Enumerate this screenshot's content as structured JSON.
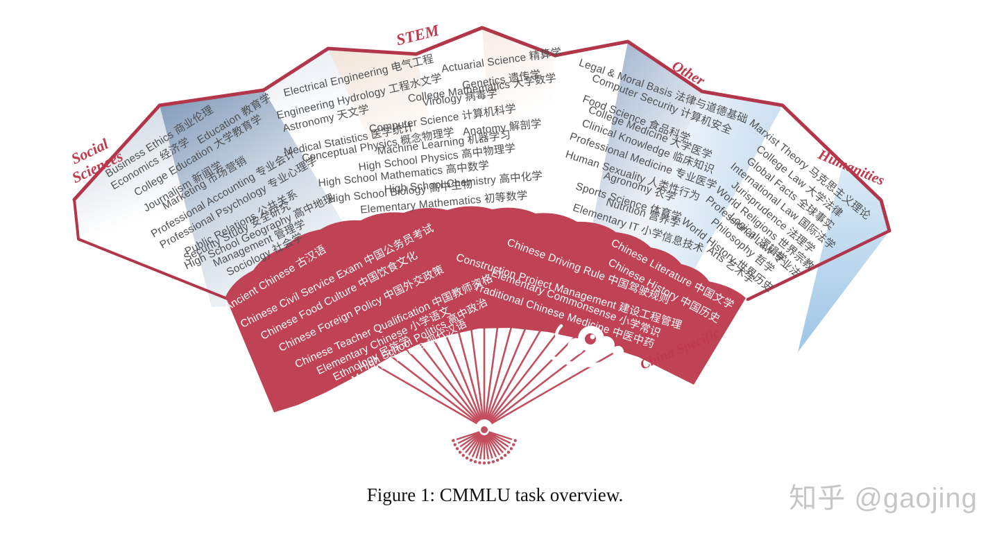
{
  "figure": {
    "caption": "Figure 1: CMMLU task overview."
  },
  "watermark": "知乎 @gaojing",
  "colors": {
    "fan_red": "#bf4355",
    "trim_red": "#b23649",
    "rib_red": "#c24e5e",
    "label_red": "#bf3a4e",
    "task_text_gray": "#4f5052",
    "band_text_white": "#ffffff",
    "blue_gray": "#8ba1bf",
    "light_blue": "#a5cbe9",
    "cream": "#f2e4d8",
    "watermark_gray": "#c6c6c6"
  },
  "categories": [
    {
      "id": "social-sciences",
      "label": "Social\nSciences",
      "items": [
        "Business Ethics 商业伦理",
        "Education 教育学",
        "Economics 经济学",
        "College Education 大学教育学",
        "Journalism 新闻学",
        "Marketing 市场营销",
        "Professional Accounting 专业会计",
        "Professional Psychology 专业心理学",
        "Public Relations 公共关系",
        "Security Study 安全研究",
        "High School Geography 高中地理",
        "Management 管理学",
        "Sociology 社会学"
      ]
    },
    {
      "id": "stem",
      "label": "STEM",
      "items": [
        "Electrical Engineering 电气工程",
        "Actuarial Science 精算学",
        "Engineering Hydrology 工程水文学",
        "Genetics 遗传学",
        "College Mathematics 大学数学",
        "Astronomy 天文学",
        "Virology 病毒学",
        "Medical Statistics 医学统计",
        "Computer Science 计算机科学",
        "Conceptual Physics 概念物理学",
        "Anatomy 解剖学",
        "Machine Learning 机器学习",
        "High School Physics 高中物理学",
        "High School Mathematics 高中数学",
        "High School Chemistry 高中化学",
        "High School Biology 高中生物",
        "Elementary Mathematics 初等数学"
      ]
    },
    {
      "id": "other",
      "label": "Other",
      "items": [
        "Legal & Moral Basis 法律与道德基础",
        "Computer Security 计算机安全",
        "Food Science 食品科学",
        "College Medicine 大学医学",
        "Clinical Knowledge 临床知识",
        "Professional Medicine 专业医学",
        "Human Sexuality 人类性行为",
        "Agronomy 农学",
        "Sports Science 体育学",
        "Nutrition 营养学",
        "Elementary IT 小学信息技术"
      ]
    },
    {
      "id": "humanities",
      "label": "Humanities",
      "items": [
        "Marxist Theory 马克思主义理论",
        "College Law 大学法律",
        "Global Facts 全球事实",
        "International Law 国际法学",
        "Jurisprudence 法理学",
        "World Religions 世界宗教",
        "Logical 逻辑学",
        "Professional Law 专业法",
        "Philosophy 哲学",
        "World History 世界历史",
        "Arts 艺术学"
      ]
    },
    {
      "id": "china-specific",
      "label": "China Specific",
      "items": [
        "Ancient Chinese 古汉语",
        "Chinese Civil Service Exam 中国公务员考试",
        "Chinese Food Culture 中国饮食文化",
        "Chinese Foreign Policy 中国外交政策",
        "Chinese Teacher Qualification 中国教师资格",
        "Elementary Chinese 小学语文",
        "Ethnology 民族学",
        "High School Politics 高中政治",
        "Modern Chinese 现代汉语",
        "Chinese Literature 中国文学",
        "Chinese History 中国历史",
        "Chinese Driving Rule 中国驾驶规则",
        "Construction Project Management 建设工程管理",
        "Elementary Commonsense 小学常识",
        "Traditional Chinese Medicine 中医中药"
      ]
    }
  ]
}
